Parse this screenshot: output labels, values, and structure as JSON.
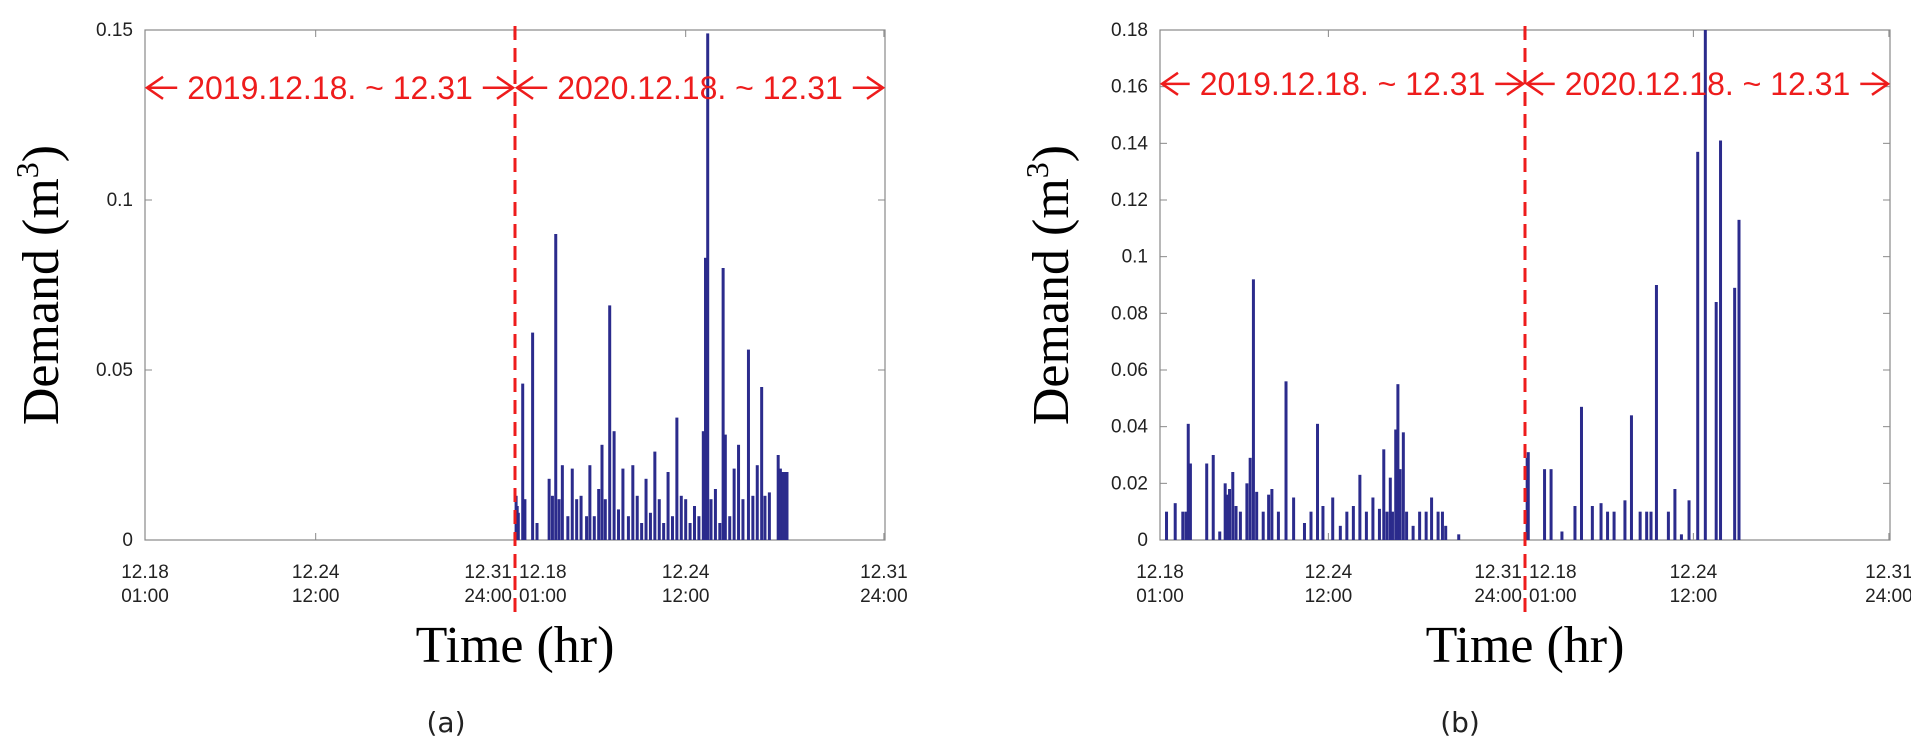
{
  "chart_data": [
    {
      "type": "bar",
      "panel_label": "(a)",
      "xlabel": "Time (hr)",
      "ylabel_main": "Demand (m",
      "ylabel_sup": "3",
      "ylabel_end": ")",
      "ylim": [
        0,
        0.15
      ],
      "yticks": [
        {
          "value": 0,
          "label": "0"
        },
        {
          "value": 0.05,
          "label": "0.05"
        },
        {
          "value": 0.1,
          "label": "0.1"
        },
        {
          "value": 0.15,
          "label": "0.15"
        }
      ],
      "xlim": [
        0,
        672
      ],
      "xticks": [
        {
          "value": 0,
          "line1": "12.18",
          "line2": "01:00"
        },
        {
          "value": 155,
          "line1": "12.24",
          "line2": "12:00"
        },
        {
          "value": 335,
          "line1": "12.31",
          "line2": "24:00"
        },
        {
          "value": 336,
          "line1": "12.18",
          "line2": "01:00"
        },
        {
          "value": 491,
          "line1": "12.24",
          "line2": "12:00"
        },
        {
          "value": 671,
          "line1": "12.31",
          "line2": "24:00"
        }
      ],
      "split_at": 336,
      "range_left": "2019.12.18. ~ 12.31",
      "range_right": "2020.12.18. ~ 12.31",
      "range_y": 0.133,
      "bars": [
        {
          "x": 337,
          "y": 0.013
        },
        {
          "x": 338,
          "y": 0.01
        },
        {
          "x": 339,
          "y": 0.008
        },
        {
          "x": 343,
          "y": 0.046
        },
        {
          "x": 345,
          "y": 0.012
        },
        {
          "x": 352,
          "y": 0.061
        },
        {
          "x": 356,
          "y": 0.005
        },
        {
          "x": 367,
          "y": 0.018
        },
        {
          "x": 370,
          "y": 0.013
        },
        {
          "x": 373,
          "y": 0.09
        },
        {
          "x": 376,
          "y": 0.012
        },
        {
          "x": 379,
          "y": 0.022
        },
        {
          "x": 384,
          "y": 0.007
        },
        {
          "x": 388,
          "y": 0.021
        },
        {
          "x": 392,
          "y": 0.012
        },
        {
          "x": 396,
          "y": 0.013
        },
        {
          "x": 401,
          "y": 0.007
        },
        {
          "x": 404,
          "y": 0.022
        },
        {
          "x": 408,
          "y": 0.007
        },
        {
          "x": 412,
          "y": 0.015
        },
        {
          "x": 415,
          "y": 0.028
        },
        {
          "x": 418,
          "y": 0.012
        },
        {
          "x": 422,
          "y": 0.069
        },
        {
          "x": 426,
          "y": 0.032
        },
        {
          "x": 430,
          "y": 0.009
        },
        {
          "x": 434,
          "y": 0.021
        },
        {
          "x": 439,
          "y": 0.007
        },
        {
          "x": 443,
          "y": 0.022
        },
        {
          "x": 447,
          "y": 0.013
        },
        {
          "x": 451,
          "y": 0.005
        },
        {
          "x": 455,
          "y": 0.018
        },
        {
          "x": 459,
          "y": 0.008
        },
        {
          "x": 463,
          "y": 0.026
        },
        {
          "x": 467,
          "y": 0.012
        },
        {
          "x": 471,
          "y": 0.005
        },
        {
          "x": 475,
          "y": 0.02
        },
        {
          "x": 479,
          "y": 0.007
        },
        {
          "x": 483,
          "y": 0.036
        },
        {
          "x": 487,
          "y": 0.013
        },
        {
          "x": 491,
          "y": 0.012
        },
        {
          "x": 495,
          "y": 0.005
        },
        {
          "x": 499,
          "y": 0.01
        },
        {
          "x": 503,
          "y": 0.007
        },
        {
          "x": 507,
          "y": 0.032
        },
        {
          "x": 509,
          "y": 0.083
        },
        {
          "x": 511,
          "y": 0.149
        },
        {
          "x": 514,
          "y": 0.012
        },
        {
          "x": 518,
          "y": 0.015
        },
        {
          "x": 522,
          "y": 0.005
        },
        {
          "x": 525,
          "y": 0.08
        },
        {
          "x": 527,
          "y": 0.031
        },
        {
          "x": 531,
          "y": 0.007
        },
        {
          "x": 535,
          "y": 0.021
        },
        {
          "x": 539,
          "y": 0.028
        },
        {
          "x": 543,
          "y": 0.012
        },
        {
          "x": 548,
          "y": 0.056
        },
        {
          "x": 552,
          "y": 0.013
        },
        {
          "x": 556,
          "y": 0.022
        },
        {
          "x": 560,
          "y": 0.045
        },
        {
          "x": 563,
          "y": 0.013
        },
        {
          "x": 567,
          "y": 0.014
        },
        {
          "x": 575,
          "y": 0.025
        },
        {
          "x": 577,
          "y": 0.021
        },
        {
          "x": 579,
          "y": 0.02
        },
        {
          "x": 581,
          "y": 0.02
        },
        {
          "x": 583,
          "y": 0.02
        }
      ]
    },
    {
      "type": "bar",
      "panel_label": "(b)",
      "xlabel": "Time (hr)",
      "ylabel_main": "Demand (m",
      "ylabel_sup": "3",
      "ylabel_end": ")",
      "ylim": [
        0,
        0.18
      ],
      "yticks": [
        {
          "value": 0,
          "label": "0"
        },
        {
          "value": 0.02,
          "label": "0.02"
        },
        {
          "value": 0.04,
          "label": "0.04"
        },
        {
          "value": 0.06,
          "label": "0.06"
        },
        {
          "value": 0.08,
          "label": "0.08"
        },
        {
          "value": 0.1,
          "label": "0.1"
        },
        {
          "value": 0.12,
          "label": "0.12"
        },
        {
          "value": 0.14,
          "label": "0.14"
        },
        {
          "value": 0.16,
          "label": "0.16"
        },
        {
          "value": 0.18,
          "label": "0.18"
        }
      ],
      "xlim": [
        0,
        672
      ],
      "xticks": [
        {
          "value": 0,
          "line1": "12.18",
          "line2": "01:00"
        },
        {
          "value": 155,
          "line1": "12.24",
          "line2": "12:00"
        },
        {
          "value": 335,
          "line1": "12.31",
          "line2": "24:00"
        },
        {
          "value": 336,
          "line1": "12.18",
          "line2": "01:00"
        },
        {
          "value": 491,
          "line1": "12.24",
          "line2": "12:00"
        },
        {
          "value": 671,
          "line1": "12.31",
          "line2": "24:00"
        }
      ],
      "split_at": 336,
      "range_left": "2019.12.18. ~ 12.31",
      "range_right": "2020.12.18. ~ 12.31",
      "range_y": 0.161,
      "bars": [
        {
          "x": 6,
          "y": 0.01
        },
        {
          "x": 14,
          "y": 0.013
        },
        {
          "x": 21,
          "y": 0.01
        },
        {
          "x": 24,
          "y": 0.01
        },
        {
          "x": 26,
          "y": 0.041
        },
        {
          "x": 28,
          "y": 0.027
        },
        {
          "x": 43,
          "y": 0.027
        },
        {
          "x": 49,
          "y": 0.03
        },
        {
          "x": 55,
          "y": 0.003
        },
        {
          "x": 60,
          "y": 0.02
        },
        {
          "x": 62,
          "y": 0.016
        },
        {
          "x": 64,
          "y": 0.018
        },
        {
          "x": 67,
          "y": 0.024
        },
        {
          "x": 70,
          "y": 0.012
        },
        {
          "x": 74,
          "y": 0.01
        },
        {
          "x": 80,
          "y": 0.02
        },
        {
          "x": 83,
          "y": 0.029
        },
        {
          "x": 86,
          "y": 0.092
        },
        {
          "x": 89,
          "y": 0.017
        },
        {
          "x": 95,
          "y": 0.01
        },
        {
          "x": 100,
          "y": 0.016
        },
        {
          "x": 103,
          "y": 0.018
        },
        {
          "x": 109,
          "y": 0.01
        },
        {
          "x": 116,
          "y": 0.056
        },
        {
          "x": 123,
          "y": 0.015
        },
        {
          "x": 133,
          "y": 0.006
        },
        {
          "x": 139,
          "y": 0.01
        },
        {
          "x": 145,
          "y": 0.041
        },
        {
          "x": 150,
          "y": 0.012
        },
        {
          "x": 159,
          "y": 0.015
        },
        {
          "x": 166,
          "y": 0.005
        },
        {
          "x": 172,
          "y": 0.01
        },
        {
          "x": 178,
          "y": 0.012
        },
        {
          "x": 184,
          "y": 0.023
        },
        {
          "x": 190,
          "y": 0.01
        },
        {
          "x": 196,
          "y": 0.015
        },
        {
          "x": 202,
          "y": 0.011
        },
        {
          "x": 206,
          "y": 0.032
        },
        {
          "x": 209,
          "y": 0.01
        },
        {
          "x": 212,
          "y": 0.022
        },
        {
          "x": 214,
          "y": 0.01
        },
        {
          "x": 217,
          "y": 0.039
        },
        {
          "x": 219,
          "y": 0.055
        },
        {
          "x": 221,
          "y": 0.025
        },
        {
          "x": 224,
          "y": 0.038
        },
        {
          "x": 227,
          "y": 0.01
        },
        {
          "x": 233,
          "y": 0.005
        },
        {
          "x": 239,
          "y": 0.01
        },
        {
          "x": 245,
          "y": 0.01
        },
        {
          "x": 250,
          "y": 0.015
        },
        {
          "x": 256,
          "y": 0.01
        },
        {
          "x": 260,
          "y": 0.01
        },
        {
          "x": 263,
          "y": 0.005
        },
        {
          "x": 275,
          "y": 0.002
        },
        {
          "x": 338,
          "y": 0.029
        },
        {
          "x": 339,
          "y": 0.031
        },
        {
          "x": 354,
          "y": 0.025
        },
        {
          "x": 360,
          "y": 0.025
        },
        {
          "x": 370,
          "y": 0.003
        },
        {
          "x": 382,
          "y": 0.012
        },
        {
          "x": 388,
          "y": 0.047
        },
        {
          "x": 398,
          "y": 0.012
        },
        {
          "x": 406,
          "y": 0.013
        },
        {
          "x": 412,
          "y": 0.01
        },
        {
          "x": 418,
          "y": 0.01
        },
        {
          "x": 428,
          "y": 0.014
        },
        {
          "x": 434,
          "y": 0.044
        },
        {
          "x": 442,
          "y": 0.01
        },
        {
          "x": 448,
          "y": 0.01
        },
        {
          "x": 452,
          "y": 0.01
        },
        {
          "x": 457,
          "y": 0.09
        },
        {
          "x": 468,
          "y": 0.01
        },
        {
          "x": 474,
          "y": 0.018
        },
        {
          "x": 480,
          "y": 0.002
        },
        {
          "x": 487,
          "y": 0.014
        },
        {
          "x": 495,
          "y": 0.137
        },
        {
          "x": 502,
          "y": 0.18
        },
        {
          "x": 512,
          "y": 0.084
        },
        {
          "x": 516,
          "y": 0.141
        },
        {
          "x": 529,
          "y": 0.089
        },
        {
          "x": 533,
          "y": 0.113
        }
      ]
    }
  ]
}
